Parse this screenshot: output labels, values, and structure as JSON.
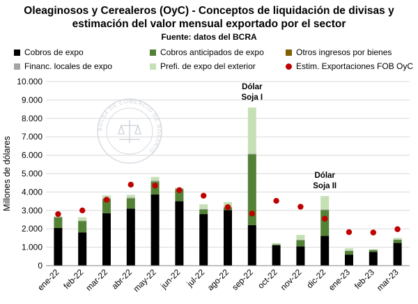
{
  "chart_data": {
    "type": "bar",
    "stacked": true,
    "title_line1": "Oleaginosos y Cerealeros (OyC) - Conceptos de liquidación de divisas y",
    "title_line2": "estimación del valor mensual exportado por el sector",
    "source": "Fuente: datos del BCRA",
    "ylabel": "Millones de dólares",
    "xlabel": "",
    "ylim": [
      0,
      10000
    ],
    "yticks": [
      0,
      1000,
      2000,
      3000,
      4000,
      5000,
      6000,
      7000,
      8000,
      9000,
      10000
    ],
    "ytick_labels": [
      "0",
      "1.000",
      "2.000",
      "3.000",
      "4.000",
      "5.000",
      "6.000",
      "7.000",
      "8.000",
      "9.000",
      "10.000"
    ],
    "categories": [
      "ene-22",
      "feb-22",
      "mar-22",
      "abr-22",
      "may-22",
      "jun-22",
      "jul-22",
      "ago-22",
      "sep-22",
      "oct-22",
      "nov-22",
      "dic-22",
      "ene-23",
      "feb-23",
      "mar-23"
    ],
    "series": [
      {
        "name": "Cobros de expo",
        "color": "#000000",
        "values": [
          2050,
          1800,
          2850,
          3100,
          3870,
          3500,
          2800,
          3020,
          2200,
          1100,
          1050,
          1620,
          600,
          750,
          1230
        ]
      },
      {
        "name": "Cobros anticipados de expo",
        "color": "#538135",
        "values": [
          570,
          620,
          780,
          560,
          700,
          650,
          250,
          150,
          3850,
          50,
          330,
          1400,
          200,
          100,
          180
        ]
      },
      {
        "name": "Otros ingresos por bienes",
        "color": "#7f6000",
        "values": [
          0,
          0,
          0,
          0,
          0,
          0,
          0,
          0,
          0,
          0,
          0,
          0,
          0,
          0,
          0
        ]
      },
      {
        "name": "Financ. locales de expo",
        "color": "#a5a5a5",
        "values": [
          30,
          30,
          40,
          40,
          50,
          40,
          30,
          30,
          40,
          20,
          20,
          30,
          20,
          10,
          20
        ]
      },
      {
        "name": "Prefi. de expo del exterior",
        "color": "#c5e0b4",
        "values": [
          30,
          180,
          150,
          150,
          200,
          40,
          250,
          250,
          2500,
          60,
          270,
          730,
          120,
          30,
          80
        ]
      }
    ],
    "points": {
      "name": "Estim. Exportaciones FOB OyC",
      "color": "#c00000",
      "values": [
        2800,
        3000,
        3580,
        4400,
        4350,
        4100,
        3800,
        3180,
        2830,
        3520,
        3200,
        2550,
        1820,
        1800,
        1980
      ]
    },
    "annotations": [
      {
        "category": "sep-22",
        "line1": "Dólar",
        "line2": "Soja I"
      },
      {
        "category": "dic-22",
        "line1": "Dólar",
        "line2": "Soja II"
      }
    ],
    "watermark": "BOLSA DE COMERCIO DE ROSARIO",
    "legend": "top"
  },
  "legend_items": [
    {
      "label": "Cobros de expo",
      "color": "#000000",
      "kind": "square"
    },
    {
      "label": "Cobros anticipados de expo",
      "color": "#538135",
      "kind": "square"
    },
    {
      "label": "Otros ingresos por bienes",
      "color": "#7f6000",
      "kind": "square"
    },
    {
      "label": "Financ. locales de expo",
      "color": "#a5a5a5",
      "kind": "square"
    },
    {
      "label": "Prefi. de expo del exterior",
      "color": "#c5e0b4",
      "kind": "square"
    },
    {
      "label": "Estim. Exportaciones FOB OyC",
      "color": "#c00000",
      "kind": "dot"
    }
  ]
}
